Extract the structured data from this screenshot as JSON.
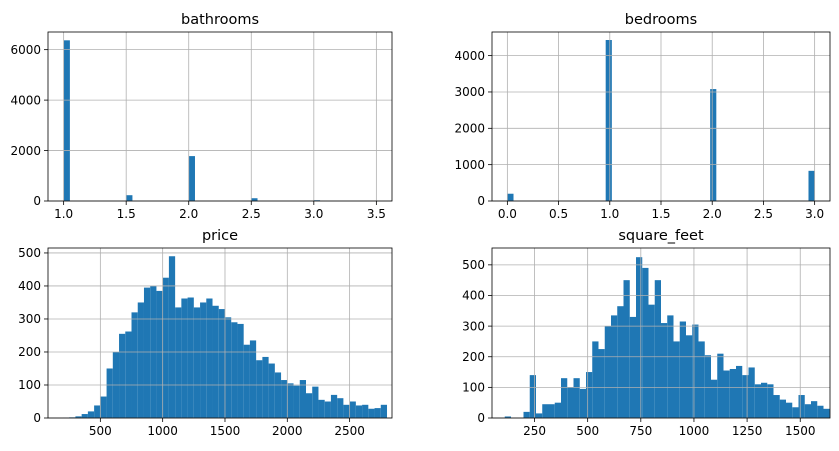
{
  "chart_data": [
    {
      "type": "bar",
      "title": "bathrooms",
      "xticks": [
        1.0,
        1.5,
        2.0,
        2.5,
        3.0,
        3.5
      ],
      "xtick_labels": [
        "1.0",
        "1.5",
        "2.0",
        "2.5",
        "3.0",
        "3.5"
      ],
      "yticks": [
        0,
        2000,
        4000,
        6000
      ],
      "ytick_labels": [
        "0",
        "2000",
        "4000",
        "6000"
      ],
      "xlim": [
        0.875,
        3.625
      ],
      "ylim": [
        0,
        6700
      ],
      "grid": true,
      "bars": [
        {
          "x0": 1.0,
          "x1": 1.05,
          "value": 6370
        },
        {
          "x0": 1.5,
          "x1": 1.55,
          "value": 230
        },
        {
          "x0": 2.0,
          "x1": 2.05,
          "value": 1780
        },
        {
          "x0": 2.5,
          "x1": 2.55,
          "value": 110
        },
        {
          "x0": 3.0,
          "x1": 3.05,
          "value": 30
        },
        {
          "x0": 3.45,
          "x1": 3.5,
          "value": 5
        }
      ]
    },
    {
      "type": "bar",
      "title": "bedrooms",
      "xticks": [
        0.0,
        0.5,
        1.0,
        1.5,
        2.0,
        2.5,
        3.0
      ],
      "xtick_labels": [
        "0.0",
        "0.5",
        "1.0",
        "1.5",
        "2.0",
        "2.5",
        "3.0"
      ],
      "yticks": [
        0,
        1000,
        2000,
        3000,
        4000
      ],
      "ytick_labels": [
        "0",
        "1000",
        "2000",
        "3000",
        "4000"
      ],
      "xlim": [
        -0.15,
        3.15
      ],
      "ylim": [
        0,
        4650
      ],
      "grid": true,
      "bars": [
        {
          "x0": 0.0,
          "x1": 0.06,
          "value": 200
        },
        {
          "x0": 0.96,
          "x1": 1.02,
          "value": 4430
        },
        {
          "x0": 1.98,
          "x1": 2.04,
          "value": 3080
        },
        {
          "x0": 2.94,
          "x1": 3.0,
          "value": 830
        }
      ]
    },
    {
      "type": "bar",
      "title": "price",
      "xticks": [
        500,
        1000,
        1500,
        2000,
        2500
      ],
      "xtick_labels": [
        "500",
        "1000",
        "1500",
        "2000",
        "2500"
      ],
      "yticks": [
        0,
        100,
        200,
        300,
        400,
        500
      ],
      "ytick_labels": [
        "0",
        "100",
        "200",
        "300",
        "400",
        "500"
      ],
      "xlim": [
        80,
        2840
      ],
      "ylim": [
        0,
        515
      ],
      "grid": true,
      "bin_start": 200,
      "bin_width": 50,
      "values": [
        1,
        2,
        5,
        12,
        20,
        38,
        65,
        150,
        200,
        255,
        262,
        320,
        350,
        395,
        400,
        385,
        425,
        490,
        335,
        362,
        365,
        335,
        350,
        362,
        340,
        330,
        305,
        290,
        285,
        222,
        235,
        175,
        185,
        165,
        138,
        115,
        105,
        98,
        115,
        75,
        95,
        55,
        50,
        70,
        60,
        40,
        50,
        38,
        40,
        28,
        30,
        40
      ]
    },
    {
      "type": "bar",
      "title": "square_feet",
      "xticks": [
        250,
        500,
        750,
        1000,
        1250,
        1500
      ],
      "xtick_labels": [
        "250",
        "500",
        "750",
        "1000",
        "1250",
        "1500"
      ],
      "yticks": [
        0,
        100,
        200,
        300,
        400,
        500
      ],
      "ytick_labels": [
        "0",
        "100",
        "200",
        "300",
        "400",
        "500"
      ],
      "xlim": [
        50,
        1640
      ],
      "ylim": [
        0,
        555
      ],
      "grid": true,
      "bin_start": 110,
      "bin_width": 29.4,
      "values": [
        5,
        0,
        0,
        20,
        140,
        15,
        45,
        45,
        50,
        130,
        100,
        130,
        95,
        150,
        250,
        225,
        300,
        335,
        365,
        450,
        330,
        525,
        490,
        370,
        450,
        310,
        335,
        250,
        315,
        270,
        305,
        250,
        205,
        125,
        210,
        155,
        160,
        170,
        140,
        165,
        110,
        115,
        110,
        75,
        60,
        50,
        35,
        75,
        45,
        55,
        40,
        30
      ]
    }
  ]
}
